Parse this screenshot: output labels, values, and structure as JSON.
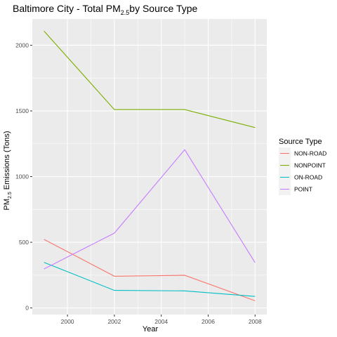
{
  "chart_data": {
    "type": "line",
    "title": {
      "prefix": "Baltimore City - Total PM",
      "subscript": "2.5",
      "suffix": "by Source Type"
    },
    "xlabel": "Year",
    "ylabel": {
      "prefix": "PM",
      "subscript": "2.5",
      "suffix": " Emissions (Tons)"
    },
    "x": [
      1999,
      2002,
      2005,
      2008
    ],
    "xlim": [
      1998.5,
      2008.5
    ],
    "ylim": [
      -50,
      2200
    ],
    "x_ticks": [
      2000,
      2002,
      2004,
      2006,
      2008
    ],
    "y_ticks": [
      0,
      500,
      1000,
      1500,
      2000
    ],
    "grid": true,
    "legend": {
      "title": "Source Type",
      "placement": "right"
    },
    "series": [
      {
        "name": "NON-ROAD",
        "color": "#F8766D",
        "values": [
          522,
          242,
          249,
          55
        ]
      },
      {
        "name": "NONPOINT",
        "color": "#7CAE00",
        "values": [
          2108,
          1510,
          1510,
          1373
        ]
      },
      {
        "name": "ON-ROAD",
        "color": "#00BFC4",
        "values": [
          347,
          134,
          130,
          88
        ]
      },
      {
        "name": "POINT",
        "color": "#C77CFF",
        "values": [
          297,
          570,
          1205,
          345
        ]
      }
    ]
  }
}
